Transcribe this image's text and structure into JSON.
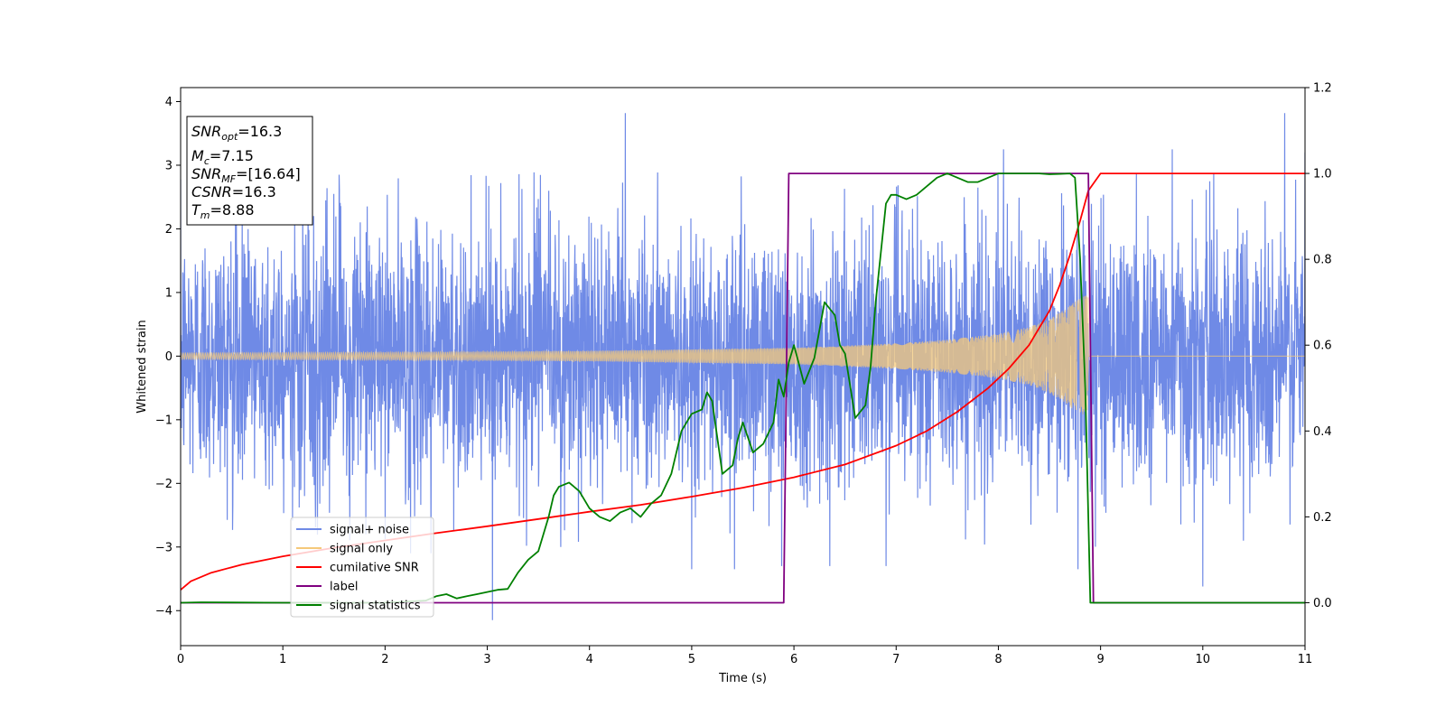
{
  "chart_data": {
    "type": "line",
    "title": "",
    "xlabel": "Time (s)",
    "ylabel": "Whitened strain",
    "xlim": [
      0,
      11
    ],
    "ylim": [
      -4.55,
      4.22
    ],
    "y2lim": [
      -0.1,
      1.2
    ],
    "xticks": [
      "0",
      "1",
      "2",
      "3",
      "4",
      "5",
      "6",
      "7",
      "8",
      "9",
      "10",
      "11"
    ],
    "yticks": [
      "−4",
      "−3",
      "−2",
      "−1",
      "0",
      "1",
      "2",
      "3",
      "4"
    ],
    "y2ticks": [
      "0.0",
      "0.2",
      "0.4",
      "0.6",
      "0.8",
      "1.0",
      "1.2"
    ],
    "grid": false,
    "legend_position": "lower-left",
    "annotation": {
      "lines": [
        {
          "sym": "SNR",
          "sub": "opt",
          "value": "=16.3"
        },
        {
          "sym": "M",
          "sub": "c",
          "value": "=7.15"
        },
        {
          "sym": "SNR",
          "sub": "MF",
          "value": "=[16.64]"
        },
        {
          "sym": "CSNR",
          "sub": "",
          "value": "=16.3"
        },
        {
          "sym": "T",
          "sub": "m",
          "value": "=8.88"
        }
      ]
    },
    "series": [
      {
        "name": "signal+ noise",
        "axis": "left",
        "color": "#6f8ae6",
        "kind": "noise",
        "noise_sigma": 1.0,
        "peaks": [
          [
            1.55,
            2.85
          ],
          [
            2.25,
            -3.1
          ],
          [
            2.45,
            -3.1
          ],
          [
            3.05,
            -4.15
          ],
          [
            3.6,
            2.6
          ],
          [
            3.72,
            -3.0
          ],
          [
            4.35,
            3.82
          ],
          [
            5.0,
            -3.35
          ],
          [
            5.42,
            -3.35
          ],
          [
            5.88,
            -3.3
          ],
          [
            6.35,
            -3.3
          ],
          [
            6.9,
            -3.3
          ],
          [
            8.05,
            3.25
          ],
          [
            8.78,
            -3.35
          ],
          [
            9.7,
            3.25
          ],
          [
            10.0,
            -3.62
          ],
          [
            10.8,
            3.82
          ],
          [
            11.0,
            3.2
          ]
        ]
      },
      {
        "name": "signal only",
        "axis": "left",
        "color": "#f5c97a",
        "kind": "chirp",
        "envelope": [
          [
            0,
            0.05
          ],
          [
            2,
            0.06
          ],
          [
            4,
            0.08
          ],
          [
            6,
            0.13
          ],
          [
            7,
            0.2
          ],
          [
            7.5,
            0.26
          ],
          [
            8,
            0.35
          ],
          [
            8.3,
            0.46
          ],
          [
            8.5,
            0.58
          ],
          [
            8.65,
            0.74
          ],
          [
            8.75,
            0.86
          ],
          [
            8.85,
            0.95
          ],
          [
            8.88,
            0.96
          ]
        ],
        "end_time": 8.88
      },
      {
        "name": "cumilative SNR",
        "axis": "right",
        "color": "#ff0000",
        "x": [
          0,
          0.1,
          0.3,
          0.6,
          1,
          1.5,
          2,
          2.5,
          3,
          3.5,
          4,
          4.5,
          5,
          5.5,
          6,
          6.5,
          7,
          7.3,
          7.6,
          7.9,
          8.1,
          8.3,
          8.5,
          8.6,
          8.7,
          8.8,
          8.88,
          9.0,
          11
        ],
        "y": [
          0.03,
          0.05,
          0.07,
          0.089,
          0.108,
          0.128,
          0.145,
          0.162,
          0.178,
          0.195,
          0.212,
          0.228,
          0.247,
          0.268,
          0.292,
          0.322,
          0.366,
          0.4,
          0.445,
          0.5,
          0.545,
          0.6,
          0.68,
          0.74,
          0.81,
          0.89,
          0.96,
          1.0,
          1.0
        ]
      },
      {
        "name": "label",
        "axis": "right",
        "color": "#800080",
        "x": [
          0,
          5.9,
          5.95,
          8.88,
          8.93,
          11
        ],
        "y": [
          0,
          0,
          1,
          1,
          0,
          0
        ]
      },
      {
        "name": "signal statistics",
        "axis": "right",
        "color": "#008000",
        "x": [
          0,
          0.2,
          1.0,
          2.0,
          2.4,
          2.5,
          2.6,
          2.7,
          2.8,
          2.9,
          3.0,
          3.1,
          3.2,
          3.3,
          3.4,
          3.5,
          3.6,
          3.65,
          3.7,
          3.8,
          3.9,
          4.0,
          4.1,
          4.2,
          4.3,
          4.4,
          4.5,
          4.6,
          4.7,
          4.8,
          4.9,
          5.0,
          5.1,
          5.15,
          5.2,
          5.3,
          5.4,
          5.45,
          5.5,
          5.6,
          5.7,
          5.8,
          5.85,
          5.9,
          5.95,
          6.0,
          6.1,
          6.2,
          6.3,
          6.4,
          6.45,
          6.5,
          6.6,
          6.7,
          6.75,
          6.8,
          6.9,
          6.95,
          7.0,
          7.1,
          7.2,
          7.3,
          7.4,
          7.5,
          7.6,
          7.7,
          7.8,
          7.9,
          8.0,
          8.1,
          8.2,
          8.3,
          8.4,
          8.5,
          8.6,
          8.7,
          8.75,
          8.8,
          8.85,
          8.9,
          9.0,
          11
        ],
        "y": [
          0.0,
          0.001,
          0.0,
          0.0,
          0.005,
          0.015,
          0.02,
          0.01,
          0.015,
          0.02,
          0.025,
          0.03,
          0.032,
          0.07,
          0.1,
          0.12,
          0.2,
          0.25,
          0.27,
          0.28,
          0.26,
          0.22,
          0.2,
          0.19,
          0.21,
          0.22,
          0.2,
          0.23,
          0.25,
          0.3,
          0.4,
          0.44,
          0.45,
          0.49,
          0.47,
          0.3,
          0.32,
          0.38,
          0.42,
          0.35,
          0.37,
          0.42,
          0.52,
          0.48,
          0.56,
          0.6,
          0.51,
          0.57,
          0.7,
          0.67,
          0.6,
          0.58,
          0.43,
          0.46,
          0.55,
          0.7,
          0.93,
          0.95,
          0.95,
          0.94,
          0.95,
          0.97,
          0.99,
          1.0,
          0.99,
          0.98,
          0.98,
          0.99,
          1.0,
          1.0,
          1.0,
          1.0,
          1.0,
          0.998,
          0.999,
          1.0,
          0.99,
          0.8,
          0.5,
          0.0,
          0.0,
          0.0
        ]
      }
    ]
  }
}
